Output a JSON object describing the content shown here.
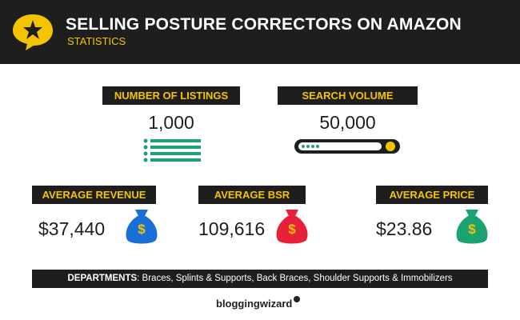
{
  "header": {
    "title": "SELLING POSTURE CORRECTORS ON AMAZON",
    "subtitle": "STATISTICS"
  },
  "stats": [
    {
      "label": "NUMBER OF LISTINGS",
      "value": "1,000"
    },
    {
      "label": "SEARCH VOLUME",
      "value": "50,000"
    },
    {
      "label": "AVERAGE REVENUE",
      "value": "$37,440"
    },
    {
      "label": "AVERAGE BSR",
      "value": "109,616"
    },
    {
      "label": "AVERAGE PRICE",
      "value": "$23.86"
    }
  ],
  "departments": {
    "label": "DEPARTMENTS",
    "text": ": Braces, Splints & Supports, Back Braces, Shoulder Supports & Immobilizers"
  },
  "footer": {
    "brand": "bloggingwizard"
  }
}
